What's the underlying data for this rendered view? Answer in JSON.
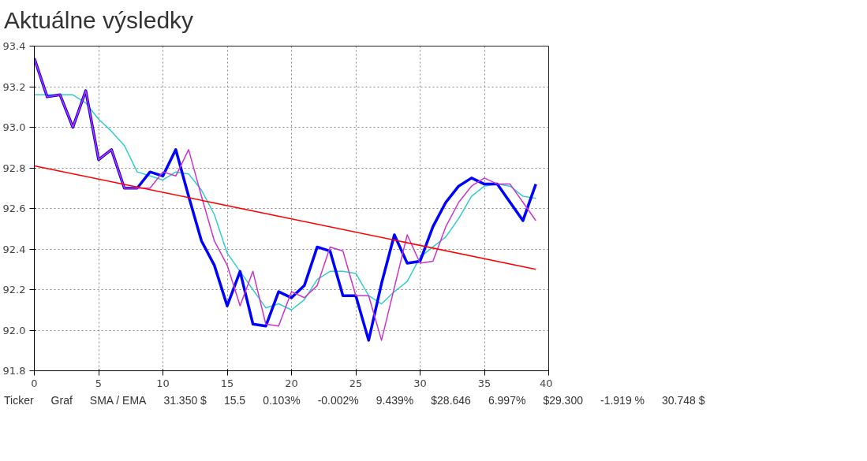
{
  "chart_data": {
    "type": "line",
    "title": "Aktuálne výsledky",
    "x": [
      0,
      1,
      2,
      3,
      4,
      5,
      6,
      7,
      8,
      9,
      10,
      11,
      12,
      13,
      14,
      15,
      16,
      17,
      18,
      19,
      20,
      21,
      22,
      23,
      24,
      25,
      26,
      27,
      28,
      29,
      30,
      31,
      32,
      33,
      34,
      35,
      36,
      37,
      38,
      39
    ],
    "series": [
      {
        "color": "#33cccc",
        "values": [
          93.16,
          93.16,
          93.16,
          93.16,
          93.12,
          93.04,
          92.98,
          92.91,
          92.78,
          92.76,
          92.74,
          92.78,
          92.77,
          92.69,
          92.57,
          92.38,
          92.29,
          92.2,
          92.11,
          92.13,
          92.1,
          92.15,
          92.25,
          92.29,
          92.29,
          92.28,
          92.17,
          92.13,
          92.19,
          92.24,
          92.36,
          92.41,
          92.46,
          92.55,
          92.66,
          92.71,
          92.72,
          92.71,
          92.66,
          92.65
        ]
      },
      {
        "color": "#0000ff",
        "values": [
          93.34,
          93.15,
          93.16,
          93.0,
          93.18,
          92.84,
          92.89,
          92.7,
          92.7,
          92.78,
          92.76,
          92.89,
          92.66,
          92.44,
          92.32,
          92.12,
          92.29,
          92.03,
          92.02,
          92.19,
          92.16,
          92.22,
          92.41,
          92.39,
          92.17,
          92.17,
          91.95,
          92.23,
          92.47,
          92.33,
          92.34,
          92.51,
          92.63,
          92.71,
          92.75,
          92.72,
          92.72,
          92.63,
          92.54,
          92.72
        ]
      },
      {
        "color": "#cc33cc",
        "values": [
          93.34,
          93.15,
          93.16,
          93.0,
          93.18,
          92.84,
          92.89,
          92.7,
          92.7,
          92.7,
          92.78,
          92.76,
          92.89,
          92.66,
          92.44,
          92.32,
          92.12,
          92.29,
          92.03,
          92.02,
          92.19,
          92.16,
          92.22,
          92.41,
          92.39,
          92.17,
          92.17,
          91.95,
          92.21,
          92.47,
          92.33,
          92.34,
          92.51,
          92.63,
          92.71,
          92.75,
          92.72,
          92.72,
          92.63,
          92.54
        ]
      },
      {
        "color": "#ff0000",
        "x": [
          0,
          39
        ],
        "values": [
          92.81,
          92.3
        ]
      }
    ],
    "xlim": [
      0,
      40
    ],
    "xticks": [
      0,
      5,
      10,
      15,
      20,
      25,
      30,
      35,
      40
    ],
    "ylim": [
      91.8,
      93.4
    ],
    "yticks": [
      {
        "value": 91.8,
        "label": "91.8"
      },
      {
        "value": 92.0,
        "label": "92.0"
      },
      {
        "value": 92.2,
        "label": "92.2"
      },
      {
        "value": 92.4,
        "label": "92.4"
      },
      {
        "value": 92.6,
        "label": "92.6"
      },
      {
        "value": 92.8,
        "label": "92.8"
      },
      {
        "value": 93.0,
        "label": "93.0"
      },
      {
        "value": 93.2,
        "label": "93.2"
      },
      {
        "value": 93.4,
        "label": "93.4"
      }
    ],
    "grid": true,
    "marker": "none",
    "line_style": "solid",
    "annotations": [
      "Ticker",
      "Graf",
      "SMA / EMA",
      "31.350 $",
      "15.5",
      "0.103%",
      "-0.002%",
      "9.439%",
      "$28.646",
      "6.997%",
      "$29.300",
      "-1.919 %",
      "30.748 $"
    ]
  }
}
